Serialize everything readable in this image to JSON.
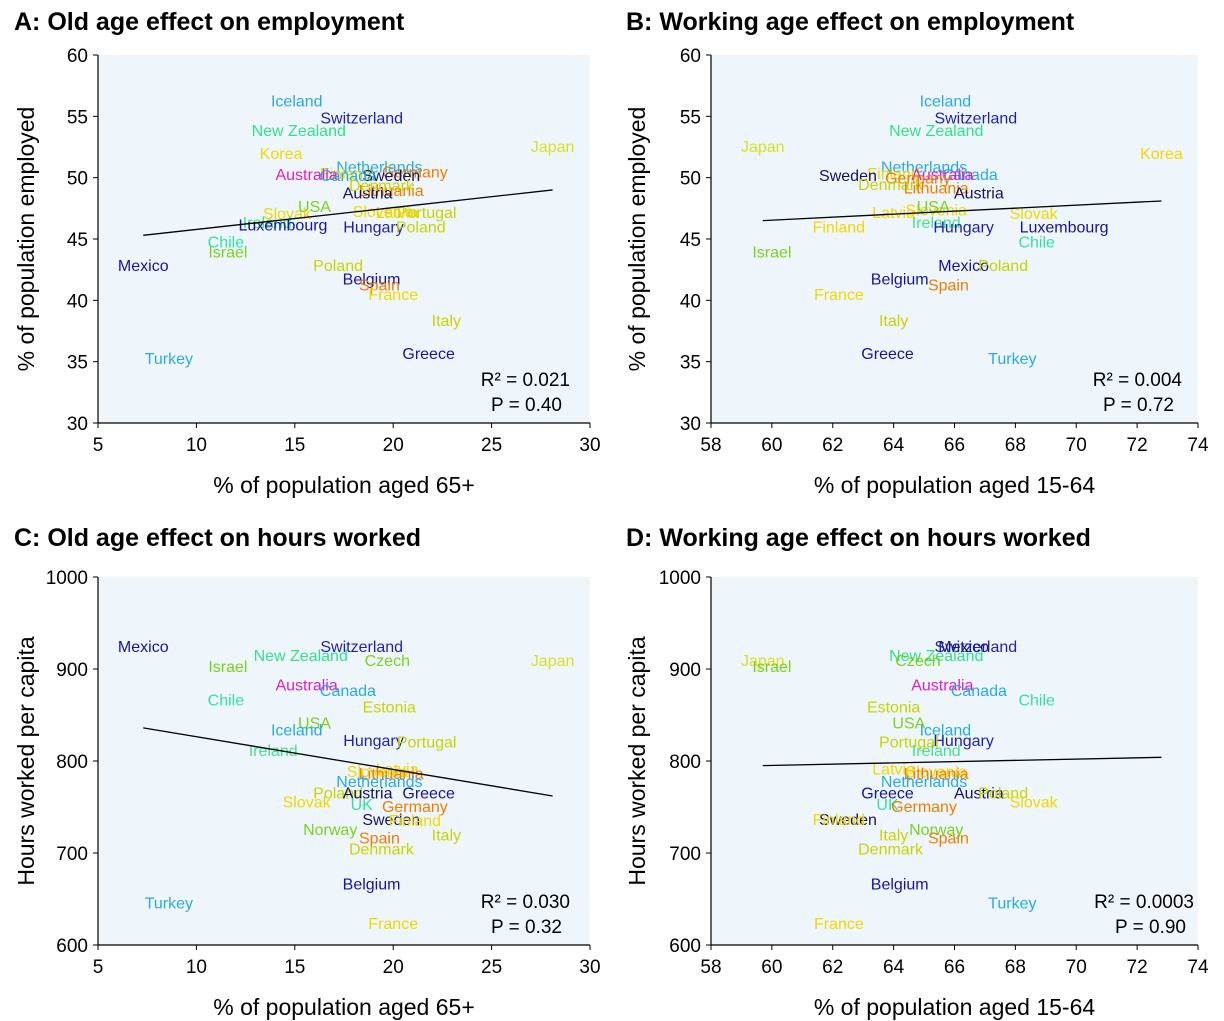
{
  "colors": {
    "plot_bg": "#eef6fc",
    "axis": "#000000",
    "trend": "#000000"
  },
  "country_colors": {
    "Iceland": "#29abe2",
    "Switzerland": "#1f1fb4",
    "New Zealand": "#34e08a",
    "Japan": "#d9e021",
    "Korea": "#f0d800",
    "Netherlands": "#29abe2",
    "Finland": "#f0d800",
    "Germany": "#f07d00",
    "Australia": "#e21ec8",
    "Sweden": "#15155c",
    "Lithuania": "#f07d00",
    "Austria": "#15155c",
    "Canada": "#29abe2",
    "Denmark": "#c8d400",
    "USA": "#7ad11f",
    "Slovenia": "#f0d800",
    "Slovak": "#f0d800",
    "Portugal": "#c8d400",
    "Ireland": "#48e090",
    "Latvia": "#f0d800",
    "Luxembourg": "#15159c",
    "Hungary": "#1f1fb4",
    "Chile": "#34e0a0",
    "Israel": "#7ad11f",
    "Mexico": "#15159c",
    "Poland": "#c8d400",
    "Belgium": "#15159c",
    "Spain": "#f07d00",
    "France": "#f0d800",
    "Italy": "#c8d400",
    "Turkey": "#29abe2",
    "Greece": "#15159c",
    "Czech": "#7ad11f",
    "Estonia": "#c8d400",
    "UK": "#34e0a0",
    "Norway": "#7ad11f"
  },
  "chart_data": [
    {
      "type": "scatter",
      "title": "A: Old age effect on employment",
      "xlabel": "% of population aged 65+",
      "ylabel": "% of population employed",
      "xlim": [
        5,
        30
      ],
      "ylim": [
        30,
        60
      ],
      "xticks": [
        5,
        10,
        15,
        20,
        25,
        30
      ],
      "yticks": [
        30,
        35,
        40,
        45,
        50,
        55,
        60
      ],
      "stats": [
        "R² = 0.021",
        "P = 0.40"
      ],
      "trend": {
        "x": [
          7.3,
          28.1
        ],
        "y": [
          45.3,
          49.0
        ]
      },
      "points": [
        {
          "label": "Iceland",
          "x": 15.1,
          "y": 56.3
        },
        {
          "label": "Switzerland",
          "x": 18.4,
          "y": 54.9
        },
        {
          "label": "New Zealand",
          "x": 15.2,
          "y": 53.9
        },
        {
          "label": "Japan",
          "x": 28.1,
          "y": 52.6
        },
        {
          "label": "Korea",
          "x": 14.3,
          "y": 52.0
        },
        {
          "label": "Netherlands",
          "x": 19.3,
          "y": 50.9
        },
        {
          "label": "Finland",
          "x": 17.6,
          "y": 50.4
        },
        {
          "label": "Germany",
          "x": 21.1,
          "y": 50.5
        },
        {
          "label": "Australia",
          "x": 15.6,
          "y": 50.3
        },
        {
          "label": "Sweden",
          "x": 19.9,
          "y": 50.2
        },
        {
          "label": "Lithuania",
          "x": 19.9,
          "y": 49.0
        },
        {
          "label": "Austria",
          "x": 18.7,
          "y": 48.8
        },
        {
          "label": "Canada",
          "x": 17.7,
          "y": 50.2
        },
        {
          "label": "Denmark",
          "x": 19.4,
          "y": 49.4
        },
        {
          "label": "USA",
          "x": 16.0,
          "y": 47.7
        },
        {
          "label": "Slovenia",
          "x": 19.5,
          "y": 47.3
        },
        {
          "label": "Slovak",
          "x": 14.6,
          "y": 47.1
        },
        {
          "label": "Portugal",
          "x": 21.7,
          "y": 47.2
        },
        {
          "label": "Ireland",
          "x": 13.6,
          "y": 46.4
        },
        {
          "label": "Latvia",
          "x": 20.2,
          "y": 47.2
        },
        {
          "label": "Luxembourg",
          "x": 14.4,
          "y": 46.2
        },
        {
          "label": "Hungary",
          "x": 19.0,
          "y": 46.0
        },
        {
          "label": "Poland",
          "x": 21.4,
          "y": 46.0
        },
        {
          "label": "Chile",
          "x": 11.5,
          "y": 44.8
        },
        {
          "label": "Israel",
          "x": 11.6,
          "y": 44.0
        },
        {
          "label": "Mexico",
          "x": 7.3,
          "y": 42.9
        },
        {
          "label": "Poland",
          "x": 17.2,
          "y": 42.9
        },
        {
          "label": "Belgium",
          "x": 18.9,
          "y": 41.8
        },
        {
          "label": "Spain",
          "x": 19.3,
          "y": 41.3
        },
        {
          "label": "France",
          "x": 20.0,
          "y": 40.5
        },
        {
          "label": "Italy",
          "x": 22.7,
          "y": 38.4
        },
        {
          "label": "Turkey",
          "x": 8.6,
          "y": 35.3
        },
        {
          "label": "Greece",
          "x": 21.8,
          "y": 35.7
        }
      ]
    },
    {
      "type": "scatter",
      "title": "B: Working age effect on employment",
      "xlabel": "% of population aged 15-64",
      "ylabel": "% of population employed",
      "xlim": [
        58,
        74
      ],
      "ylim": [
        30,
        60
      ],
      "xticks": [
        58,
        60,
        62,
        64,
        66,
        68,
        70,
        72,
        74
      ],
      "yticks": [
        30,
        35,
        40,
        45,
        50,
        55,
        60
      ],
      "stats": [
        "R² = 0.004",
        "P = 0.72"
      ],
      "trend": {
        "x": [
          59.7,
          72.8
        ],
        "y": [
          46.5,
          48.1
        ]
      },
      "points": [
        {
          "label": "Iceland",
          "x": 65.7,
          "y": 56.3
        },
        {
          "label": "Switzerland",
          "x": 66.7,
          "y": 54.9
        },
        {
          "label": "New Zealand",
          "x": 65.4,
          "y": 53.9
        },
        {
          "label": "Japan",
          "x": 59.7,
          "y": 52.6
        },
        {
          "label": "Korea",
          "x": 72.8,
          "y": 52.0
        },
        {
          "label": "Netherlands",
          "x": 65.0,
          "y": 50.9
        },
        {
          "label": "Finland",
          "x": 64.0,
          "y": 50.4
        },
        {
          "label": "Canada",
          "x": 66.5,
          "y": 50.3
        },
        {
          "label": "Australia",
          "x": 65.6,
          "y": 50.3
        },
        {
          "label": "Sweden",
          "x": 62.5,
          "y": 50.2
        },
        {
          "label": "Germany",
          "x": 64.8,
          "y": 50.0
        },
        {
          "label": "Denmark",
          "x": 63.9,
          "y": 49.5
        },
        {
          "label": "Lithuania",
          "x": 65.4,
          "y": 49.2
        },
        {
          "label": "Austria",
          "x": 66.8,
          "y": 48.8
        },
        {
          "label": "Latvia",
          "x": 64.0,
          "y": 47.2
        },
        {
          "label": "Slovenia",
          "x": 65.4,
          "y": 47.4
        },
        {
          "label": "USA",
          "x": 65.3,
          "y": 47.7
        },
        {
          "label": "Ireland",
          "x": 65.4,
          "y": 46.4
        },
        {
          "label": "Slovak",
          "x": 68.6,
          "y": 47.1
        },
        {
          "label": "Finland",
          "x": 62.2,
          "y": 46.0
        },
        {
          "label": "Hungary",
          "x": 66.3,
          "y": 46.0
        },
        {
          "label": "Luxembourg",
          "x": 69.6,
          "y": 46.0
        },
        {
          "label": "Chile",
          "x": 68.7,
          "y": 44.8
        },
        {
          "label": "Israel",
          "x": 60.0,
          "y": 44.0
        },
        {
          "label": "Mexico",
          "x": 66.3,
          "y": 42.9
        },
        {
          "label": "Poland",
          "x": 67.6,
          "y": 42.9
        },
        {
          "label": "Belgium",
          "x": 64.2,
          "y": 41.8
        },
        {
          "label": "Spain",
          "x": 65.8,
          "y": 41.3
        },
        {
          "label": "France",
          "x": 62.2,
          "y": 40.5
        },
        {
          "label": "Italy",
          "x": 64.0,
          "y": 38.4
        },
        {
          "label": "Greece",
          "x": 63.8,
          "y": 35.7
        },
        {
          "label": "Turkey",
          "x": 67.9,
          "y": 35.3
        }
      ]
    },
    {
      "type": "scatter",
      "title": "C: Old age effect on hours worked",
      "xlabel": "% of population aged 65+",
      "ylabel": "Hours worked per capita",
      "xlim": [
        5,
        30
      ],
      "ylim": [
        600,
        1000
      ],
      "xticks": [
        5,
        10,
        15,
        20,
        25,
        30
      ],
      "yticks": [
        600,
        700,
        800,
        900,
        1000
      ],
      "stats": [
        "R² = 0.030",
        "P = 0.32"
      ],
      "trend": {
        "x": [
          7.3,
          28.1
        ],
        "y": [
          836,
          762
        ]
      },
      "points": [
        {
          "label": "Mexico",
          "x": 7.3,
          "y": 925
        },
        {
          "label": "Switzerland",
          "x": 18.4,
          "y": 925
        },
        {
          "label": "New Zealand",
          "x": 15.3,
          "y": 915
        },
        {
          "label": "Czech",
          "x": 19.7,
          "y": 910
        },
        {
          "label": "Japan",
          "x": 28.1,
          "y": 910
        },
        {
          "label": "Israel",
          "x": 11.6,
          "y": 903
        },
        {
          "label": "Australia",
          "x": 15.6,
          "y": 883
        },
        {
          "label": "Canada",
          "x": 17.7,
          "y": 877
        },
        {
          "label": "Chile",
          "x": 11.5,
          "y": 867
        },
        {
          "label": "Estonia",
          "x": 19.8,
          "y": 859
        },
        {
          "label": "USA",
          "x": 16.0,
          "y": 842
        },
        {
          "label": "Iceland",
          "x": 15.1,
          "y": 834
        },
        {
          "label": "Hungary",
          "x": 19.0,
          "y": 823
        },
        {
          "label": "Portugal",
          "x": 21.7,
          "y": 821
        },
        {
          "label": "Ireland",
          "x": 13.9,
          "y": 812
        },
        {
          "label": "Latvia",
          "x": 20.2,
          "y": 792
        },
        {
          "label": "Slovenia",
          "x": 19.2,
          "y": 789
        },
        {
          "label": "Lithuania",
          "x": 19.9,
          "y": 787
        },
        {
          "label": "Netherlands",
          "x": 19.3,
          "y": 778
        },
        {
          "label": "Poland",
          "x": 17.2,
          "y": 766
        },
        {
          "label": "Austria",
          "x": 18.7,
          "y": 766
        },
        {
          "label": "Greece",
          "x": 21.8,
          "y": 766
        },
        {
          "label": "Slovak",
          "x": 15.6,
          "y": 756
        },
        {
          "label": "UK",
          "x": 18.4,
          "y": 753
        },
        {
          "label": "Germany",
          "x": 21.1,
          "y": 751
        },
        {
          "label": "Sweden",
          "x": 19.9,
          "y": 737
        },
        {
          "label": "Finland",
          "x": 21.1,
          "y": 736
        },
        {
          "label": "Norway",
          "x": 16.8,
          "y": 726
        },
        {
          "label": "Italy",
          "x": 22.7,
          "y": 720
        },
        {
          "label": "Spain",
          "x": 19.3,
          "y": 717
        },
        {
          "label": "Denmark",
          "x": 19.4,
          "y": 705
        },
        {
          "label": "Belgium",
          "x": 18.9,
          "y": 667
        },
        {
          "label": "Turkey",
          "x": 8.6,
          "y": 646
        },
        {
          "label": "France",
          "x": 20.0,
          "y": 624
        }
      ]
    },
    {
      "type": "scatter",
      "title": "D: Working age effect on hours worked",
      "xlabel": "% of population aged 15-64",
      "ylabel": "Hours worked per capita",
      "xlim": [
        58,
        74
      ],
      "ylim": [
        600,
        1000
      ],
      "xticks": [
        58,
        60,
        62,
        64,
        66,
        68,
        70,
        72,
        74
      ],
      "yticks": [
        600,
        700,
        800,
        900,
        1000
      ],
      "stats": [
        "R² = 0.0003",
        "P = 0.90"
      ],
      "trend": {
        "x": [
          59.7,
          72.8
        ],
        "y": [
          795,
          804
        ]
      },
      "points": [
        {
          "label": "Switzerland",
          "x": 66.7,
          "y": 925
        },
        {
          "label": "Mexico",
          "x": 66.3,
          "y": 925
        },
        {
          "label": "New Zealand",
          "x": 65.4,
          "y": 915
        },
        {
          "label": "Czech",
          "x": 64.8,
          "y": 910
        },
        {
          "label": "Japan",
          "x": 59.7,
          "y": 910
        },
        {
          "label": "Israel",
          "x": 60.0,
          "y": 903
        },
        {
          "label": "Australia",
          "x": 65.6,
          "y": 883
        },
        {
          "label": "Canada",
          "x": 66.8,
          "y": 877
        },
        {
          "label": "Chile",
          "x": 68.7,
          "y": 867
        },
        {
          "label": "Estonia",
          "x": 64.0,
          "y": 859
        },
        {
          "label": "USA",
          "x": 64.5,
          "y": 842
        },
        {
          "label": "Iceland",
          "x": 65.7,
          "y": 834
        },
        {
          "label": "Hungary",
          "x": 66.3,
          "y": 823
        },
        {
          "label": "Portugal",
          "x": 64.5,
          "y": 821
        },
        {
          "label": "Ireland",
          "x": 65.4,
          "y": 812
        },
        {
          "label": "Latvia",
          "x": 64.0,
          "y": 792
        },
        {
          "label": "Slovenia",
          "x": 65.4,
          "y": 789
        },
        {
          "label": "Lithuania",
          "x": 65.4,
          "y": 787
        },
        {
          "label": "Netherlands",
          "x": 65.0,
          "y": 778
        },
        {
          "label": "Greece",
          "x": 63.8,
          "y": 766
        },
        {
          "label": "Austria",
          "x": 66.8,
          "y": 766
        },
        {
          "label": "Poland",
          "x": 67.6,
          "y": 766
        },
        {
          "label": "Slovak",
          "x": 68.6,
          "y": 756
        },
        {
          "label": "UK",
          "x": 63.8,
          "y": 753
        },
        {
          "label": "Germany",
          "x": 65.0,
          "y": 751
        },
        {
          "label": "Sweden",
          "x": 62.5,
          "y": 737
        },
        {
          "label": "Finland",
          "x": 62.2,
          "y": 737
        },
        {
          "label": "Norway",
          "x": 65.4,
          "y": 726
        },
        {
          "label": "Italy",
          "x": 64.0,
          "y": 720
        },
        {
          "label": "Spain",
          "x": 65.8,
          "y": 717
        },
        {
          "label": "Denmark",
          "x": 63.9,
          "y": 705
        },
        {
          "label": "Belgium",
          "x": 64.2,
          "y": 667
        },
        {
          "label": "Turkey",
          "x": 67.9,
          "y": 646
        },
        {
          "label": "France",
          "x": 62.2,
          "y": 624
        }
      ]
    }
  ]
}
